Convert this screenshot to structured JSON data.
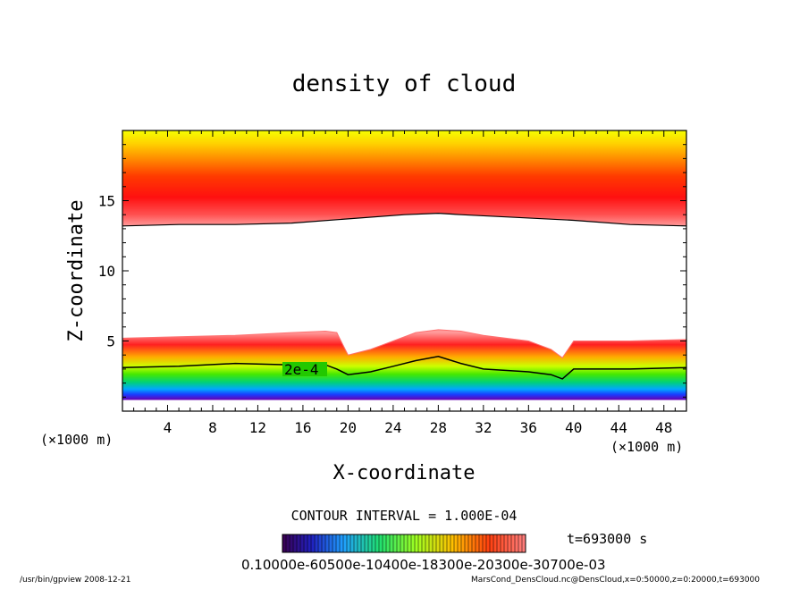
{
  "chart_data": {
    "type": "heatmap",
    "title": "density of cloud",
    "xlabel": "X-coordinate",
    "ylabel": "Z-coordinate",
    "x_unit": "(×1000 m)",
    "y_unit": "(×1000 m)",
    "xlim": [
      0,
      50
    ],
    "ylim": [
      0,
      20
    ],
    "x_ticks": [
      4,
      8,
      12,
      16,
      20,
      24,
      28,
      32,
      36,
      40,
      44,
      48
    ],
    "y_ticks": [
      5,
      10,
      15
    ],
    "contour_label": "2e-4",
    "contour_interval": "CONTOUR INTERVAL = 1.000E-04",
    "time_label": "t=693000 s",
    "colorbar_labels": "0.10000e-60500e-10400e-18300e-20300e-30700e-03",
    "footer_left": "/usr/bin/gpview  2008-12-21",
    "footer_right": "MarsCond_DensCloud.nc@DensCloud,x=0:50000,z=0:20000,t=693000",
    "upper_layer": {
      "x": [
        0,
        5,
        10,
        15,
        20,
        25,
        28,
        30,
        35,
        40,
        45,
        50
      ],
      "bottom_z": [
        13.2,
        13.3,
        13.3,
        13.4,
        13.7,
        14.0,
        14.1,
        14.0,
        13.8,
        13.6,
        13.3,
        13.2
      ],
      "peak_z": 15.4,
      "top_z": 20
    },
    "lower_layer": {
      "x": [
        0,
        5,
        10,
        15,
        18,
        19,
        20,
        22,
        24,
        26,
        28,
        30,
        32,
        36,
        38,
        39,
        40,
        45,
        50
      ],
      "top_z": [
        5.2,
        5.3,
        5.4,
        5.6,
        5.7,
        5.6,
        4.0,
        4.4,
        5.0,
        5.6,
        5.8,
        5.7,
        5.4,
        5.0,
        4.4,
        3.8,
        5.0,
        5.0,
        5.1
      ],
      "contour_2e4_z": [
        3.1,
        3.2,
        3.4,
        3.3,
        3.3,
        3.0,
        2.6,
        2.8,
        3.2,
        3.6,
        3.9,
        3.4,
        3.0,
        2.8,
        2.6,
        2.3,
        3.0,
        3.0,
        3.1
      ],
      "bottom_z": 0.8
    }
  }
}
